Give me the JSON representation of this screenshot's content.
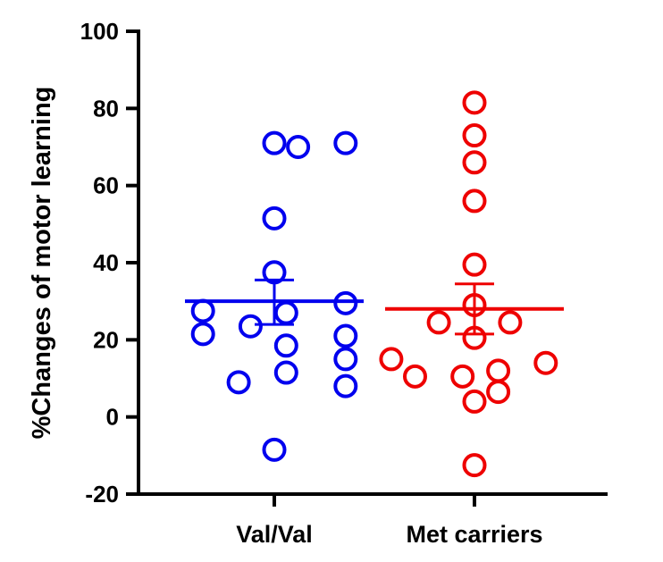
{
  "chart_data": {
    "type": "scatter",
    "ylabel": "%Changes of motor learning",
    "xlabel": "",
    "ylim": [
      -20,
      100
    ],
    "yticks": [
      "100",
      "80",
      "60",
      "40",
      "20",
      "0",
      "-20"
    ],
    "categories": [
      "Val/Val",
      "Met carriers"
    ],
    "grid": false,
    "legend": "none",
    "series": [
      {
        "category": "Val/Val",
        "color": "#0000ee",
        "mean": 30,
        "sem_upper": 35.5,
        "sem_lower": 24,
        "points": [
          {
            "x": 0.6,
            "y": 70
          },
          {
            "x": 0.5,
            "y": 71
          },
          {
            "x": 0.8,
            "y": 71
          },
          {
            "x": 0.5,
            "y": 51.5
          },
          {
            "x": 0.5,
            "y": 37.5
          },
          {
            "x": 0.2,
            "y": 27.5
          },
          {
            "x": 0.8,
            "y": 29.5
          },
          {
            "x": 0.55,
            "y": 27
          },
          {
            "x": 0.4,
            "y": 23.5
          },
          {
            "x": 0.2,
            "y": 21.5
          },
          {
            "x": 0.8,
            "y": 21
          },
          {
            "x": 0.55,
            "y": 18.5
          },
          {
            "x": 0.8,
            "y": 15
          },
          {
            "x": 0.55,
            "y": 11.5
          },
          {
            "x": 0.35,
            "y": 9
          },
          {
            "x": 0.8,
            "y": 8
          },
          {
            "x": 0.5,
            "y": -8.5
          }
        ]
      },
      {
        "category": "Met carriers",
        "color": "#ee0000",
        "mean": 28,
        "sem_upper": 34.5,
        "sem_lower": 21.5,
        "points": [
          {
            "x": 0.5,
            "y": 81.5
          },
          {
            "x": 0.5,
            "y": 73
          },
          {
            "x": 0.5,
            "y": 66
          },
          {
            "x": 0.5,
            "y": 56
          },
          {
            "x": 0.5,
            "y": 39.5
          },
          {
            "x": 0.5,
            "y": 29
          },
          {
            "x": 0.35,
            "y": 24.5
          },
          {
            "x": 0.65,
            "y": 24.5
          },
          {
            "x": 0.5,
            "y": 20.5
          },
          {
            "x": 0.15,
            "y": 15
          },
          {
            "x": 0.8,
            "y": 14
          },
          {
            "x": 0.6,
            "y": 12
          },
          {
            "x": 0.25,
            "y": 10.5
          },
          {
            "x": 0.45,
            "y": 10.5
          },
          {
            "x": 0.6,
            "y": 6.5
          },
          {
            "x": 0.5,
            "y": 4
          },
          {
            "x": 0.5,
            "y": -12.5
          }
        ]
      }
    ]
  }
}
